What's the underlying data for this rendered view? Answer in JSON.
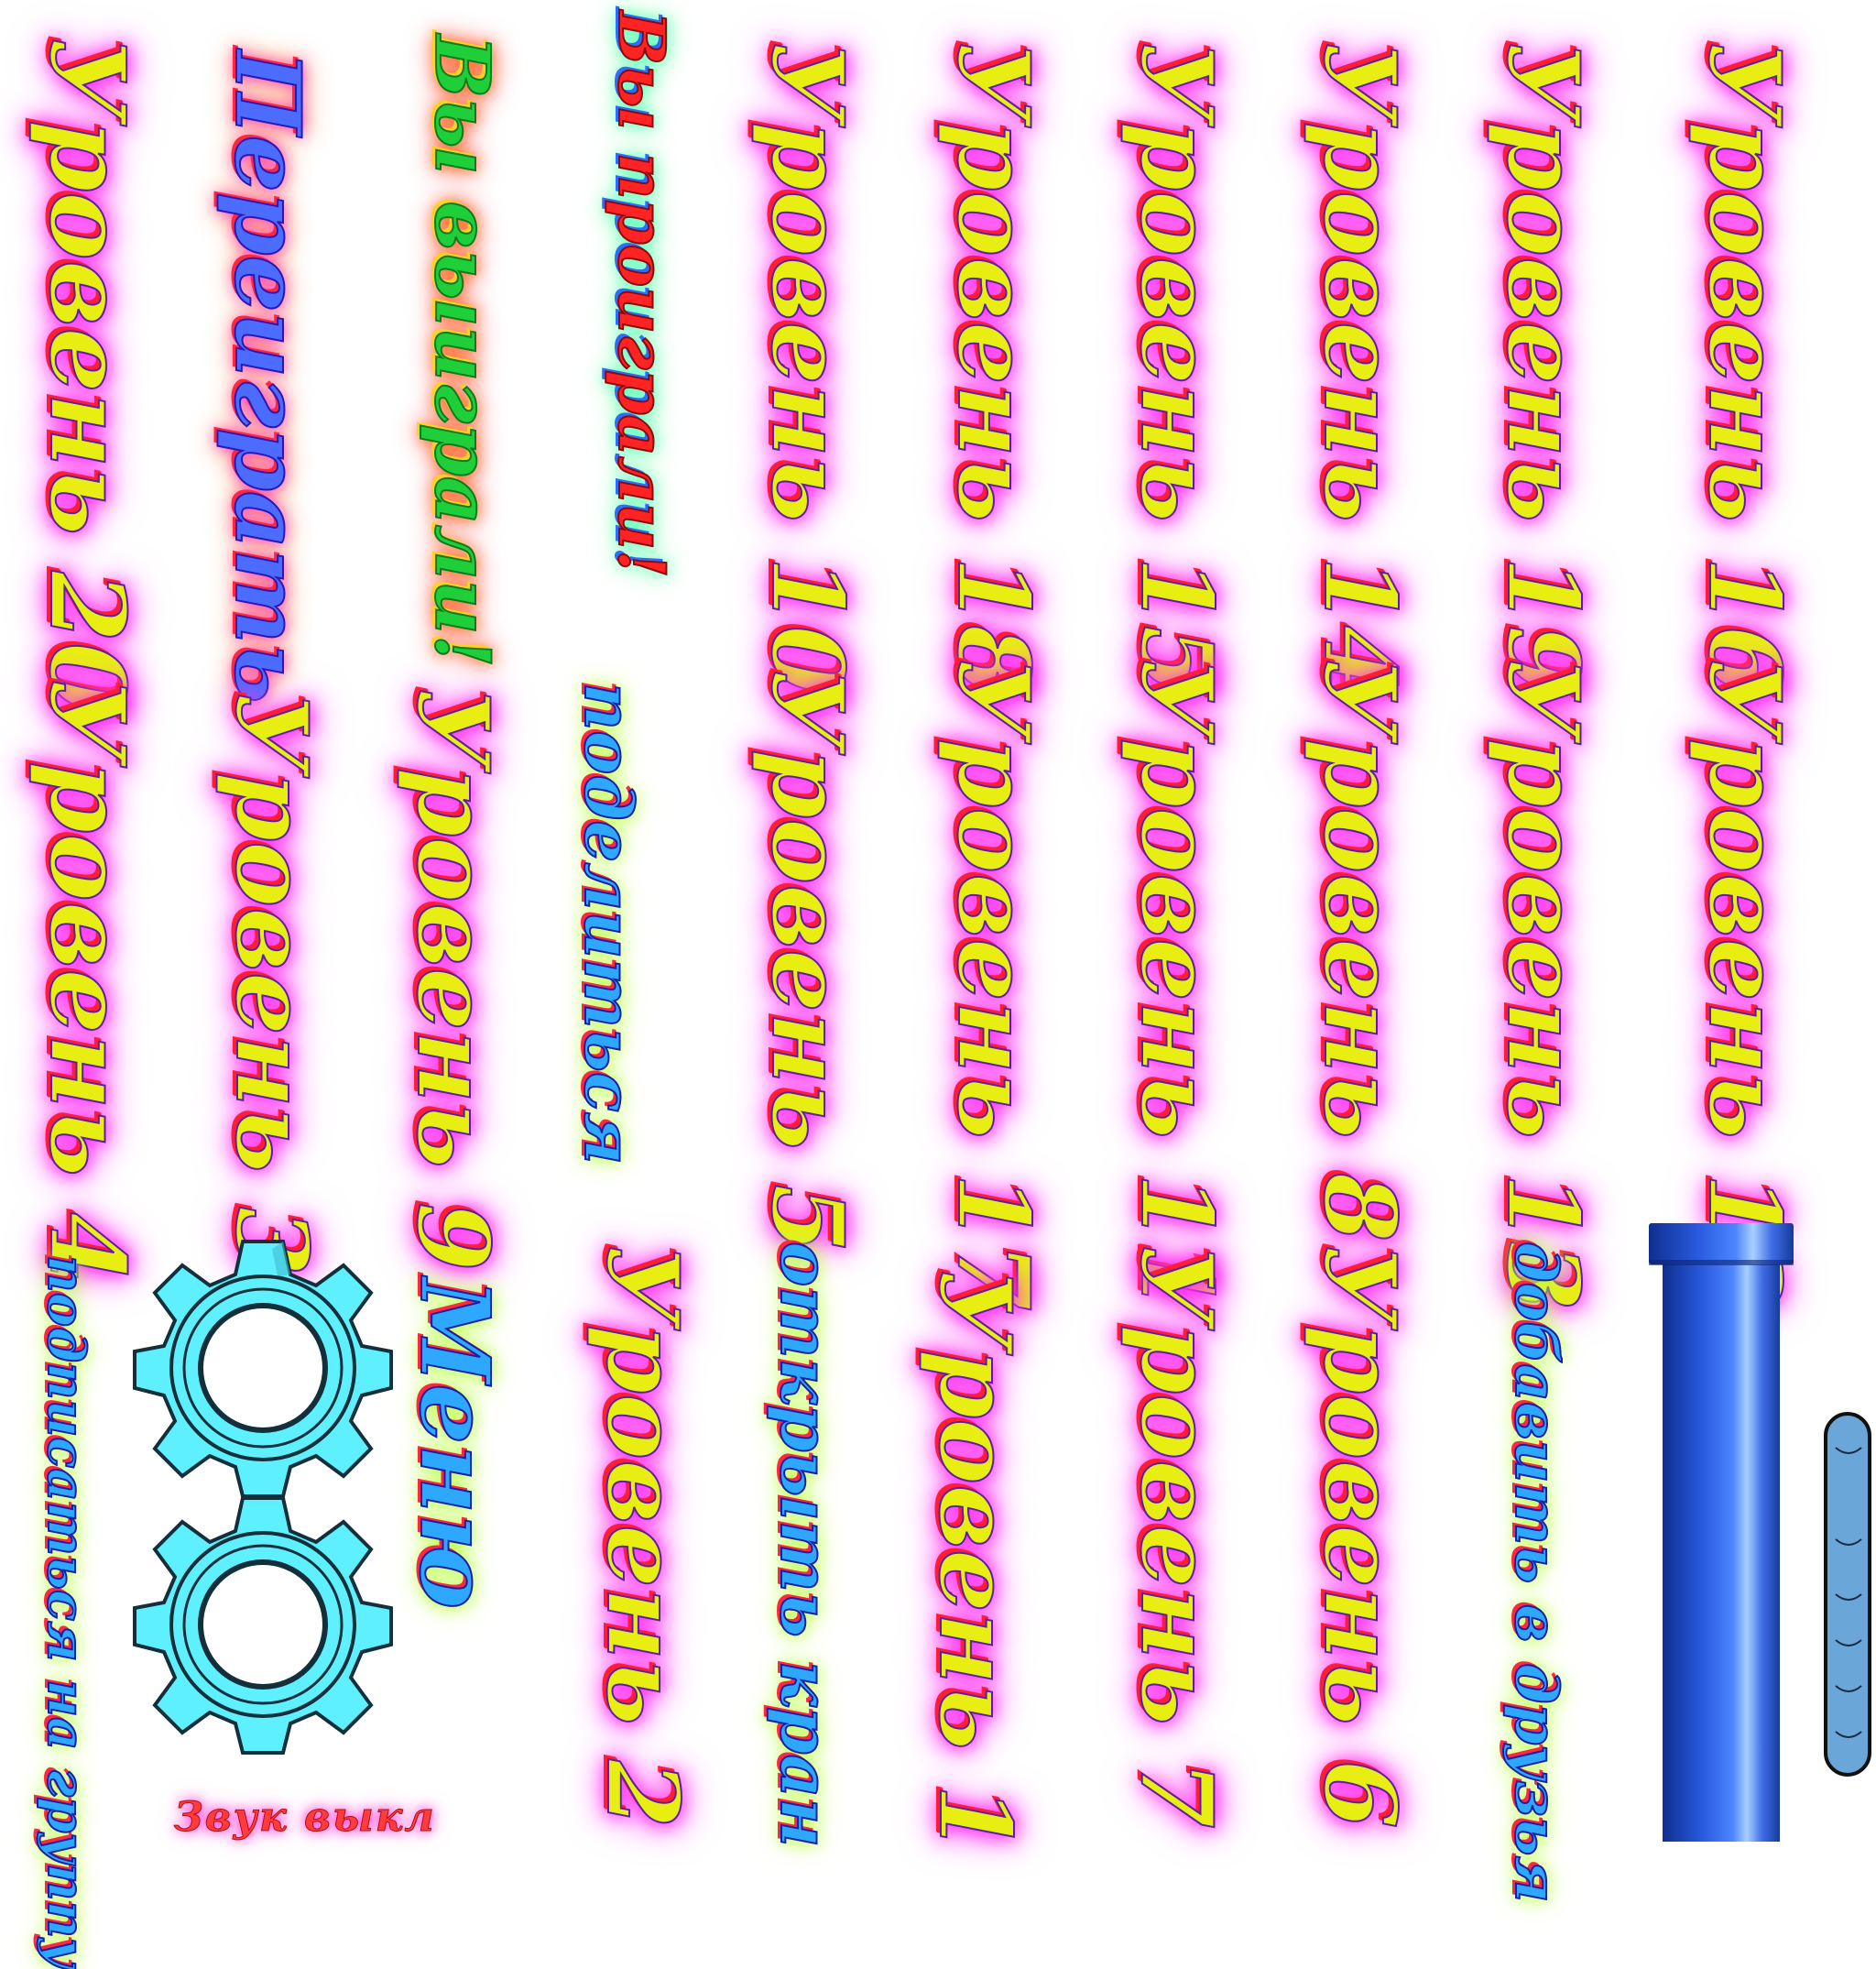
{
  "columns_top": {
    "level_20": "Уровень 20",
    "replay": "Переиграть",
    "you_won": "Вы выиграли!",
    "you_lost": "Вы проиграли!",
    "level_10": "Уровень 10",
    "level_18": "Уровень 18",
    "level_15": "Уровень 15",
    "level_14": "Уровень 14",
    "level_19": "Уровень 19",
    "level_16": "Уровень 16"
  },
  "columns_middle": {
    "level_4": "Уровень 4",
    "level_3": "Уровень 3",
    "level_9": "Уровень 9",
    "share": "поделиться",
    "level_5": "Уровень 5",
    "level_17": "Уровень 17",
    "level_11": "Уровень 11",
    "level_8": "Уровень 8",
    "level_13": "Уровень 13",
    "level_12": "Уровень 12"
  },
  "columns_bottom": {
    "subscribe": "подписаться на группу",
    "menu": "Меню",
    "level_2": "Уровень 2",
    "open_screen": "открыть кран",
    "level_1": "Уровень 1",
    "level_7": "Уровень 7",
    "level_6": "Уровень 6",
    "add_friends": "добавить в друзья"
  },
  "sound_toggle": "Звук выкл",
  "icons": {
    "gear_top": "gear-icon",
    "gear_bottom": "gear-icon",
    "pipe": "pipe-icon",
    "capsule": "water-capsule-icon"
  },
  "colors": {
    "level_text": "#e9ee12",
    "level_shadow": "#ff1d35",
    "glow_magenta": "#ff2bf0",
    "button_blue": "#2ea8ff",
    "gear_fill": "#5ff0ff",
    "pipe_blue": "#2456d6"
  }
}
